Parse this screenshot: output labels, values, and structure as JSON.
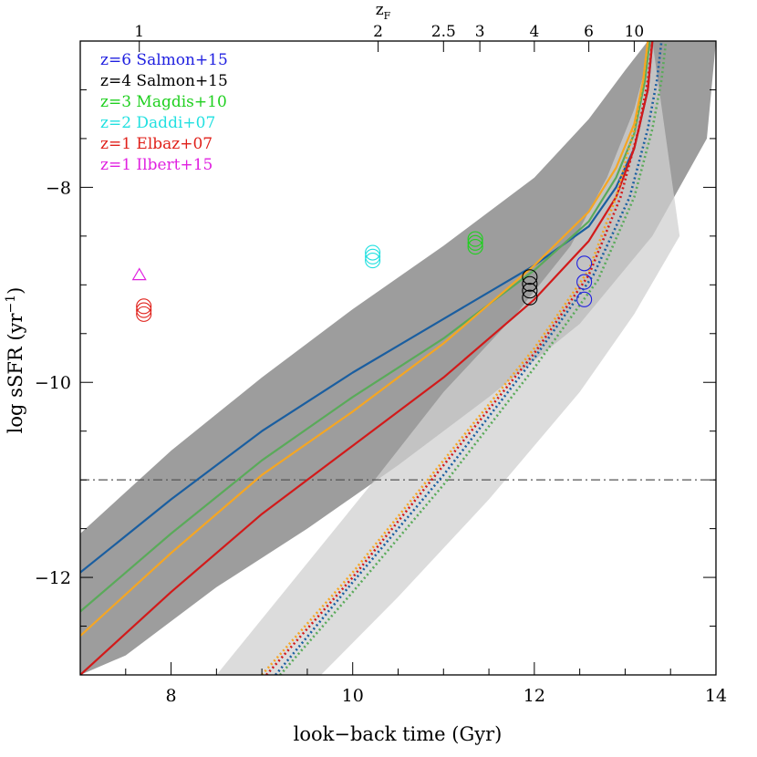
{
  "chart_data": {
    "type": "line",
    "xlabel": "look−back time (Gyr)",
    "ylabel_main": "log sSFR (yr",
    "ylabel_sup": "−1",
    "ylabel_end": ")",
    "top_axis_label": "z",
    "top_axis_sub": "F",
    "xlim": [
      7,
      14
    ],
    "ylim": [
      -13,
      -6.5
    ],
    "x_ticks": [
      {
        "v": 8,
        "label": "8"
      },
      {
        "v": 10,
        "label": "10"
      },
      {
        "v": 12,
        "label": "12"
      },
      {
        "v": 14,
        "label": "14"
      }
    ],
    "y_ticks": [
      {
        "v": -8,
        "label": "−8"
      },
      {
        "v": -10,
        "label": "−10"
      },
      {
        "v": -12,
        "label": "−12"
      }
    ],
    "top_ticks": [
      {
        "x": 7.65,
        "label": "1"
      },
      {
        "x": 10.28,
        "label": "2"
      },
      {
        "x": 11.0,
        "label": "2.5"
      },
      {
        "x": 11.4,
        "label": "3"
      },
      {
        "x": 12.0,
        "label": "4"
      },
      {
        "x": 12.6,
        "label": "6"
      },
      {
        "x": 13.1,
        "label": "10"
      }
    ],
    "hline_y": -11.0,
    "bands": [
      {
        "name": "band-dark",
        "color": "#8c8c8c",
        "upper": [
          [
            7.0,
            -11.55
          ],
          [
            8.0,
            -10.7
          ],
          [
            9.0,
            -9.95
          ],
          [
            10.0,
            -9.25
          ],
          [
            11.0,
            -8.6
          ],
          [
            12.0,
            -7.9
          ],
          [
            12.6,
            -7.3
          ],
          [
            13.0,
            -6.8
          ],
          [
            13.25,
            -6.5
          ]
        ],
        "lower": [
          [
            7.0,
            -13.0
          ],
          [
            7.5,
            -12.8
          ],
          [
            8.5,
            -12.1
          ],
          [
            9.5,
            -11.5
          ],
          [
            10.5,
            -10.85
          ],
          [
            11.5,
            -10.15
          ],
          [
            12.5,
            -9.4
          ],
          [
            13.3,
            -8.5
          ],
          [
            13.9,
            -7.5
          ],
          [
            14.0,
            -6.5
          ]
        ]
      },
      {
        "name": "band-light",
        "color": "#d0d0d0",
        "upper": [
          [
            10.2,
            -11.05
          ],
          [
            11.0,
            -10.1
          ],
          [
            11.8,
            -9.3
          ],
          [
            12.4,
            -8.6
          ],
          [
            12.8,
            -7.9
          ],
          [
            13.1,
            -7.2
          ],
          [
            13.3,
            -6.5
          ]
        ],
        "lower": [
          [
            8.5,
            -13.0
          ],
          [
            9.0,
            -13.0
          ],
          [
            9.65,
            -13.0
          ],
          [
            10.5,
            -12.2
          ],
          [
            11.5,
            -11.2
          ],
          [
            12.5,
            -10.1
          ],
          [
            13.1,
            -9.3
          ],
          [
            13.6,
            -8.5
          ]
        ]
      }
    ],
    "series": [
      {
        "color": "#1a5ea0",
        "dash": false,
        "points": [
          [
            7.0,
            -11.95
          ],
          [
            8.0,
            -11.2
          ],
          [
            9.0,
            -10.5
          ],
          [
            10.0,
            -9.9
          ],
          [
            11.0,
            -9.35
          ],
          [
            12.0,
            -8.8
          ],
          [
            12.6,
            -8.4
          ],
          [
            12.9,
            -8.0
          ],
          [
            13.1,
            -7.6
          ],
          [
            13.25,
            -7.0
          ],
          [
            13.3,
            -6.5
          ]
        ]
      },
      {
        "color": "#5aaa5a",
        "dash": false,
        "points": [
          [
            7.0,
            -12.35
          ],
          [
            8.0,
            -11.55
          ],
          [
            9.0,
            -10.8
          ],
          [
            10.0,
            -10.15
          ],
          [
            11.0,
            -9.55
          ],
          [
            12.0,
            -8.85
          ],
          [
            12.6,
            -8.35
          ],
          [
            12.9,
            -7.9
          ],
          [
            13.1,
            -7.45
          ],
          [
            13.22,
            -6.9
          ],
          [
            13.27,
            -6.5
          ]
        ]
      },
      {
        "color": "#f5a623",
        "dash": false,
        "points": [
          [
            7.0,
            -12.6
          ],
          [
            8.0,
            -11.75
          ],
          [
            9.0,
            -10.95
          ],
          [
            10.0,
            -10.3
          ],
          [
            11.0,
            -9.6
          ],
          [
            12.0,
            -8.8
          ],
          [
            12.6,
            -8.25
          ],
          [
            12.9,
            -7.8
          ],
          [
            13.1,
            -7.35
          ],
          [
            13.2,
            -6.9
          ],
          [
            13.25,
            -6.5
          ]
        ]
      },
      {
        "color": "#d21a1a",
        "dash": false,
        "points": [
          [
            7.0,
            -13.0
          ],
          [
            8.0,
            -12.15
          ],
          [
            9.0,
            -11.35
          ],
          [
            10.0,
            -10.65
          ],
          [
            11.0,
            -9.95
          ],
          [
            12.0,
            -9.15
          ],
          [
            12.6,
            -8.55
          ],
          [
            12.9,
            -8.1
          ],
          [
            13.1,
            -7.6
          ],
          [
            13.25,
            -7.0
          ],
          [
            13.3,
            -6.5
          ]
        ]
      },
      {
        "color": "#d21a1a",
        "dash": true,
        "points": [
          [
            9.05,
            -13.0
          ],
          [
            10.0,
            -12.0
          ],
          [
            11.0,
            -10.85
          ],
          [
            12.0,
            -9.7
          ],
          [
            12.6,
            -8.9
          ],
          [
            12.95,
            -8.1
          ],
          [
            13.15,
            -7.4
          ],
          [
            13.25,
            -6.9
          ],
          [
            13.3,
            -6.5
          ]
        ]
      },
      {
        "color": "#f5a623",
        "dash": true,
        "points": [
          [
            9.0,
            -13.0
          ],
          [
            10.0,
            -11.95
          ],
          [
            11.0,
            -10.8
          ],
          [
            12.0,
            -9.65
          ],
          [
            12.6,
            -8.85
          ],
          [
            12.9,
            -8.1
          ],
          [
            13.1,
            -7.4
          ],
          [
            13.2,
            -6.9
          ],
          [
            13.25,
            -6.5
          ]
        ]
      },
      {
        "color": "#5aaa5a",
        "dash": true,
        "points": [
          [
            9.2,
            -13.0
          ],
          [
            10.0,
            -12.15
          ],
          [
            11.0,
            -11.05
          ],
          [
            12.0,
            -9.85
          ],
          [
            12.7,
            -8.95
          ],
          [
            13.1,
            -8.1
          ],
          [
            13.3,
            -7.4
          ],
          [
            13.4,
            -6.9
          ],
          [
            13.45,
            -6.5
          ]
        ]
      },
      {
        "color": "#1a5ea0",
        "dash": true,
        "points": [
          [
            9.15,
            -13.0
          ],
          [
            10.0,
            -12.05
          ],
          [
            11.0,
            -10.95
          ],
          [
            12.0,
            -9.75
          ],
          [
            12.65,
            -8.9
          ],
          [
            13.05,
            -8.1
          ],
          [
            13.25,
            -7.4
          ],
          [
            13.35,
            -6.9
          ],
          [
            13.4,
            -6.5
          ]
        ]
      }
    ],
    "circles": [
      {
        "color": "#e0201a",
        "x": 7.7,
        "ys": [
          -9.22,
          -9.26,
          -9.3
        ]
      },
      {
        "color": "#22e0e0",
        "x": 10.22,
        "ys": [
          -8.67,
          -8.71,
          -8.75
        ]
      },
      {
        "color": "#20d020",
        "x": 11.35,
        "ys": [
          -8.53,
          -8.57,
          -8.61
        ]
      },
      {
        "color": "#000000",
        "x": 11.95,
        "ys": [
          -8.92,
          -8.99,
          -9.06,
          -9.13
        ]
      },
      {
        "color": "#2020e0",
        "x": 12.55,
        "ys": [
          -8.78,
          -8.97,
          -9.15
        ]
      }
    ],
    "triangle": {
      "color": "#e020e0",
      "x": 7.65,
      "y": -8.9
    },
    "legend": [
      {
        "label": "z=6  Salmon+15",
        "color": "#2020e0"
      },
      {
        "label": "z=4  Salmon+15",
        "color": "#000000"
      },
      {
        "label": "z=3  Magdis+10",
        "color": "#20d020"
      },
      {
        "label": "z=2  Daddi+07",
        "color": "#22e0e0"
      },
      {
        "label": "z=1  Elbaz+07",
        "color": "#e0201a"
      },
      {
        "label": "z=1  Ilbert+15",
        "color": "#e020e0"
      }
    ],
    "legend_placement": "top-left"
  }
}
